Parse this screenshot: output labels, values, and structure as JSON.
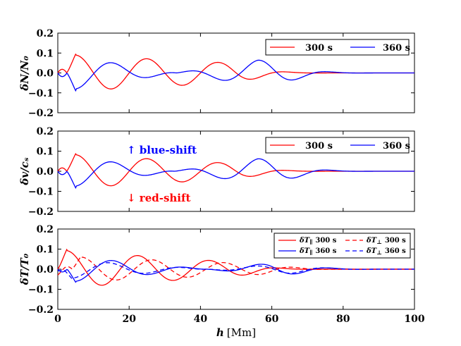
{
  "colors": {
    "red": "#ff0000",
    "blue": "#0000ff",
    "axis": "#000000"
  },
  "chart_data": [
    {
      "type": "line",
      "ylabel": "δN/N₀",
      "ylim": [
        -0.2,
        0.2
      ],
      "yticks": [
        "0.2",
        "0.1",
        "0.0",
        "−0.1",
        "−0.2"
      ],
      "ytick_values": [
        0.2,
        0.1,
        0.0,
        -0.1,
        -0.2
      ],
      "legend": {
        "position": "top-right",
        "labels": [
          "300 s",
          "360 s"
        ]
      },
      "series": [
        {
          "name": "300 s",
          "color": "#ff0000",
          "dash": "solid",
          "amp0": -0.095,
          "a": 0.094,
          "b": 0.052,
          "end": 0.052,
          "P": 20,
          "sh": 0,
          "decay": 46,
          "L": 12
        },
        {
          "name": "360 s",
          "color": "#0000ff",
          "dash": "solid",
          "amp0": 0.095,
          "a": -0.094,
          "b": 0.064,
          "end": 0.046,
          "P": 20.5,
          "sh": 0,
          "decay": 56,
          "L": 13
        }
      ]
    },
    {
      "type": "line",
      "ylabel": "δv/cₛ",
      "ylim": [
        -0.2,
        0.2
      ],
      "yticks": [
        "0.2",
        "0.1",
        "0.0",
        "−0.1",
        "−0.2"
      ],
      "ytick_values": [
        0.2,
        0.1,
        0.0,
        -0.1,
        -0.2
      ],
      "legend": {
        "position": "top-right",
        "labels": [
          "300 s",
          "360 s"
        ]
      },
      "annotations": [
        {
          "text": "↑  blue-shift",
          "color": "#0000ff",
          "x": 20,
          "y": 0.11
        },
        {
          "text": "↓  red-shift",
          "color": "#ff0000",
          "x": 20,
          "y": -0.135
        }
      ],
      "series": [
        {
          "name": "300 s",
          "color": "#ff0000",
          "dash": "solid",
          "amp0": -0.087,
          "a": 0.087,
          "b": 0.042,
          "end": 0.042,
          "P": 20,
          "sh": 0,
          "decay": 46,
          "L": 12
        },
        {
          "name": "360 s",
          "color": "#0000ff",
          "dash": "solid",
          "amp0": 0.087,
          "a": -0.087,
          "b": 0.062,
          "end": 0.04,
          "P": 20.5,
          "sh": 0,
          "decay": 56,
          "L": 13
        }
      ]
    },
    {
      "type": "line",
      "ylabel": "δT/T₀",
      "xlabel": "h",
      "xunit": "[Mm]",
      "xlim": [
        0,
        100
      ],
      "xticks": [
        "0",
        "20",
        "40",
        "60",
        "80",
        "100"
      ],
      "xtick_values": [
        0,
        20,
        40,
        60,
        80,
        100
      ],
      "ylim": [
        -0.2,
        0.2
      ],
      "yticks": [
        "0.2",
        "0.1",
        "0.0",
        "−0.1",
        "−0.2"
      ],
      "ytick_values": [
        0.2,
        0.1,
        0.0,
        -0.1,
        -0.2
      ],
      "legend": {
        "position": "top-right",
        "entries": [
          {
            "sym": "δT",
            "sub": "∥",
            "label": "300 s",
            "color": "#ff0000",
            "dash": "solid"
          },
          {
            "sym": "δT",
            "sub": "⊥",
            "label": "300 s",
            "color": "#ff0000",
            "dash": "dashed"
          },
          {
            "sym": "δT",
            "sub": "∥",
            "label": "360 s",
            "color": "#0000ff",
            "dash": "solid"
          },
          {
            "sym": "δT",
            "sub": "⊥",
            "label": "360 s",
            "color": "#0000ff",
            "dash": "dashed"
          }
        ]
      },
      "series": [
        {
          "name": "δT∥ 300 s",
          "color": "#ff0000",
          "dash": "solid",
          "amp0": -0.1,
          "a": 0.098,
          "b": 0.04,
          "end": 0.04,
          "P": 20,
          "sh": 2.5,
          "decay": 48,
          "L": 12
        },
        {
          "name": "δT∥ 360 s",
          "color": "#0000ff",
          "dash": "solid",
          "amp0": 0.07,
          "a": -0.068,
          "b": 0.03,
          "end": 0.03,
          "P": 20.5,
          "sh": 0,
          "decay": 60,
          "L": 13
        },
        {
          "name": "δT⊥ 300 s",
          "color": "#ff0000",
          "dash": "dashed",
          "amp0": -0.065,
          "a": 0.064,
          "b": 0.028,
          "end": 0.028,
          "P": 20,
          "sh": -1.5,
          "decay": 52,
          "L": 12
        },
        {
          "name": "δT⊥ 360 s",
          "color": "#0000ff",
          "dash": "dashed",
          "amp0": 0.045,
          "a": -0.05,
          "b": 0.022,
          "end": 0.022,
          "P": 20.5,
          "sh": 1,
          "decay": 62,
          "L": 13
        }
      ]
    }
  ]
}
